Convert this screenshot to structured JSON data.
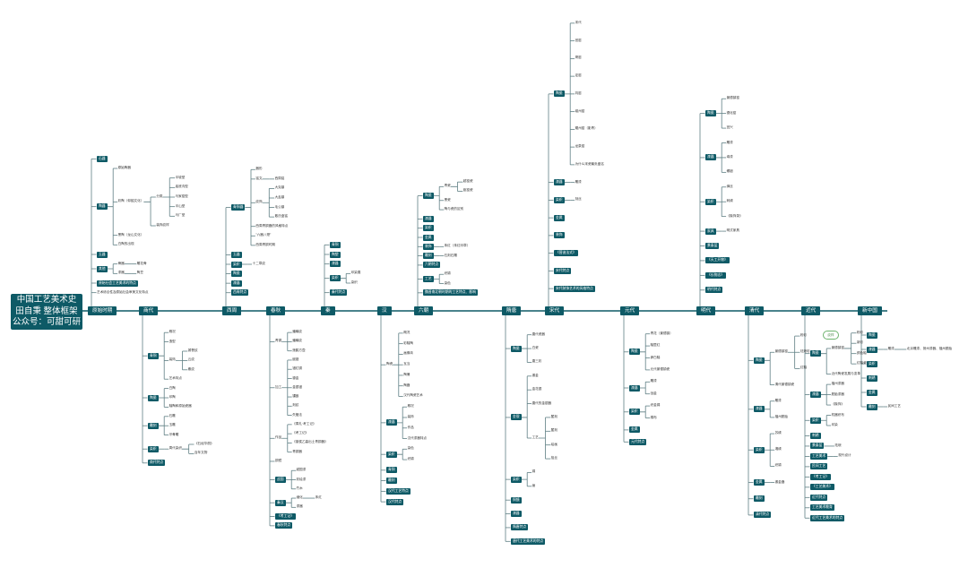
{
  "root": {
    "lines": [
      "中国工艺美术史",
      "田自秉 整体框架",
      "公众号：可甜可研"
    ]
  },
  "eras": [
    {
      "id": "prehist",
      "label": "原始时期"
    },
    {
      "id": "shang",
      "label": "商代"
    },
    {
      "id": "xizhou",
      "label": "西周"
    },
    {
      "id": "chunqiu",
      "label": "春秋"
    },
    {
      "id": "qin",
      "label": "秦"
    },
    {
      "id": "han",
      "label": "汉"
    },
    {
      "id": "liuchao",
      "label": "六朝"
    },
    {
      "id": "suitang",
      "label": "隋唐"
    },
    {
      "id": "songdai",
      "label": "宋代"
    },
    {
      "id": "yuandai",
      "label": "元代"
    },
    {
      "id": "mingdai",
      "label": "明代"
    },
    {
      "id": "qingdai",
      "label": "清代"
    },
    {
      "id": "jindai",
      "label": "近代"
    },
    {
      "id": "xinzg",
      "label": "新中国"
    }
  ],
  "nodes": [
    {
      "id": "n1",
      "p": "prehist",
      "t": "石器",
      "s": "sec"
    },
    {
      "id": "n2",
      "p": "prehist",
      "t": "陶器",
      "s": "sec"
    },
    {
      "id": "n3",
      "p": "n2",
      "t": "原始陶器"
    },
    {
      "id": "n4",
      "p": "n2",
      "t": "彩陶（仰韶文化）"
    },
    {
      "id": "n5",
      "p": "n4",
      "t": "分类"
    },
    {
      "id": "n6",
      "p": "n5",
      "t": "半坡型"
    },
    {
      "id": "n7",
      "p": "n5",
      "t": "庙底沟型"
    },
    {
      "id": "n8",
      "p": "n5",
      "t": "马家窑型"
    },
    {
      "id": "n9",
      "p": "n5",
      "t": "半山型"
    },
    {
      "id": "n10",
      "p": "n5",
      "t": "马厂型"
    },
    {
      "id": "n11",
      "p": "n4",
      "t": "装饰纹样"
    },
    {
      "id": "n12",
      "p": "n2",
      "t": "黑陶（龙山文化）"
    },
    {
      "id": "n13",
      "p": "n2",
      "t": "白陶的出现"
    },
    {
      "id": "n14",
      "p": "prehist",
      "t": "玉器",
      "s": "sec"
    },
    {
      "id": "n15",
      "p": "prehist",
      "t": "其他",
      "s": "sec"
    },
    {
      "id": "n16",
      "p": "n15",
      "t": "骨器"
    },
    {
      "id": "n17",
      "p": "n16",
      "t": "雕花骨"
    },
    {
      "id": "n18",
      "p": "n15",
      "t": "漆器"
    },
    {
      "id": "n19",
      "p": "n18",
      "t": "陶豆"
    },
    {
      "id": "n20",
      "p": "prehist",
      "t": "原始社会工艺美术的特点",
      "s": "sec"
    },
    {
      "id": "n21",
      "p": "prehist",
      "t": "艺术综合性及原始社会审美文化特点"
    },
    {
      "id": "s1",
      "p": "shang",
      "t": "青铜",
      "s": "sec"
    },
    {
      "id": "s2",
      "p": "s1",
      "t": "概况"
    },
    {
      "id": "s3",
      "p": "s1",
      "t": "造型"
    },
    {
      "id": "s4",
      "p": "s1",
      "t": "装饰"
    },
    {
      "id": "s5",
      "p": "s4",
      "t": "饕餮纹"
    },
    {
      "id": "s6",
      "p": "s4",
      "t": "云纹"
    },
    {
      "id": "s7",
      "p": "s4",
      "t": "夔纹"
    },
    {
      "id": "s8",
      "p": "s1",
      "t": "艺术特点"
    },
    {
      "id": "s9",
      "p": "shang",
      "t": "陶瓷",
      "s": "sec"
    },
    {
      "id": "s10",
      "p": "s9",
      "t": "白陶"
    },
    {
      "id": "s11",
      "p": "s9",
      "t": "印陶"
    },
    {
      "id": "s12",
      "p": "s9",
      "t": "釉陶和原始瓷器"
    },
    {
      "id": "s13",
      "p": "shang",
      "t": "雕刻",
      "s": "sec"
    },
    {
      "id": "s14",
      "p": "s13",
      "t": "石雕"
    },
    {
      "id": "s15",
      "p": "s13",
      "t": "玉雕"
    },
    {
      "id": "s16",
      "p": "s13",
      "t": "牙骨雕"
    },
    {
      "id": "s17",
      "p": "shang",
      "t": "染织",
      "s": "sec"
    },
    {
      "id": "s18",
      "p": "s17",
      "t": "周代染织"
    },
    {
      "id": "s19",
      "p": "s18",
      "t": "《石经华丽》"
    },
    {
      "id": "s20",
      "p": "s18",
      "t": "百年文物"
    },
    {
      "id": "s21",
      "p": "shang",
      "t": "商代特点",
      "s": "sec"
    },
    {
      "id": "x1",
      "p": "xizhou",
      "t": "青铜器",
      "s": "sec"
    },
    {
      "id": "x2",
      "p": "x1",
      "t": "器形"
    },
    {
      "id": "x3",
      "p": "x1",
      "t": "铭文"
    },
    {
      "id": "x4",
      "p": "x3",
      "t": "西周铭"
    },
    {
      "id": "x5",
      "p": "x1",
      "t": "纹饰"
    },
    {
      "id": "x6",
      "p": "x5",
      "t": "大克鼎"
    },
    {
      "id": "x7",
      "p": "x5",
      "t": "大盂鼎"
    },
    {
      "id": "x8",
      "p": "x5",
      "t": "毛公鼎"
    },
    {
      "id": "x9",
      "p": "x5",
      "t": "散氏盘铭"
    },
    {
      "id": "x10",
      "p": "x1",
      "t": "西周青铜器的风格特点"
    },
    {
      "id": "x11",
      "p": "x1",
      "t": "\"六器八瓒\""
    },
    {
      "id": "x12",
      "p": "x1",
      "t": "西周青铜时期"
    },
    {
      "id": "x13",
      "p": "xizhou",
      "t": "玉器",
      "s": "sec"
    },
    {
      "id": "x14",
      "p": "xizhou",
      "t": "染织",
      "s": "sec"
    },
    {
      "id": "x15",
      "p": "x14",
      "t": "十二章纹"
    },
    {
      "id": "x16",
      "p": "xizhou",
      "t": "陶瓷",
      "s": "sec"
    },
    {
      "id": "x17",
      "p": "xizhou",
      "t": "漆器",
      "s": "sec"
    },
    {
      "id": "x18",
      "p": "xizhou",
      "t": "西周特点",
      "s": "sec"
    },
    {
      "id": "c1",
      "p": "chunqiu",
      "t": "青铜"
    },
    {
      "id": "c2",
      "p": "c1",
      "t": "蟠螭纹"
    },
    {
      "id": "c3",
      "p": "c1",
      "t": "蟠螭纹"
    },
    {
      "id": "c4",
      "p": "c1",
      "t": "莲鹤方壶"
    },
    {
      "id": "c5",
      "p": "chunqiu",
      "t": "加工"
    },
    {
      "id": "c6",
      "p": "c5",
      "t": "嵌错"
    },
    {
      "id": "c7",
      "p": "c5",
      "t": "错红铜"
    },
    {
      "id": "c8",
      "p": "c5",
      "t": "鎏金"
    },
    {
      "id": "c9",
      "p": "c5",
      "t": "金银错"
    },
    {
      "id": "c10",
      "p": "c5",
      "t": "镶嵌"
    },
    {
      "id": "c11",
      "p": "c5",
      "t": "刻纹"
    },
    {
      "id": "c12",
      "p": "c5",
      "t": "失蜡法"
    },
    {
      "id": "c13",
      "p": "chunqiu",
      "t": "作品"
    },
    {
      "id": "c14",
      "p": "c13",
      "t": "《周礼·考工记》"
    },
    {
      "id": "c15",
      "p": "c13",
      "t": "《考工记》"
    },
    {
      "id": "c16",
      "p": "c13",
      "t": "《曾侯乙墓出土青铜器》"
    },
    {
      "id": "c17",
      "p": "c13",
      "t": "青铜器"
    },
    {
      "id": "c18",
      "p": "chunqiu",
      "t": "铜镜"
    },
    {
      "id": "c19",
      "p": "chunqiu",
      "t": "战国",
      "s": "sec"
    },
    {
      "id": "c20",
      "p": "c19",
      "t": "越国漆"
    },
    {
      "id": "c21",
      "p": "c19",
      "t": "彩绘漆"
    },
    {
      "id": "c22",
      "p": "c19",
      "t": "竹木"
    },
    {
      "id": "c23",
      "p": "chunqiu",
      "t": "秦汉",
      "s": "sec"
    },
    {
      "id": "c24",
      "p": "c23",
      "t": "缀化"
    },
    {
      "id": "c25",
      "p": "c24",
      "t": "朱红"
    },
    {
      "id": "c26",
      "p": "c23",
      "t": "漆器"
    },
    {
      "id": "c27",
      "p": "chunqiu",
      "t": "《考工记》",
      "s": "sec"
    },
    {
      "id": "c28",
      "p": "chunqiu",
      "t": "春秋特点",
      "s": "sec"
    },
    {
      "id": "q1",
      "p": "qin",
      "t": "青铜",
      "s": "sec"
    },
    {
      "id": "q2",
      "p": "qin",
      "t": "陶塑",
      "s": "sec"
    },
    {
      "id": "q3",
      "p": "qin",
      "t": "漆器",
      "s": "sec"
    },
    {
      "id": "q4",
      "p": "qin",
      "t": "染织",
      "s": "sec"
    },
    {
      "id": "q5",
      "p": "q4",
      "t": "印染展"
    },
    {
      "id": "q6",
      "p": "q4",
      "t": "染织"
    },
    {
      "id": "q7",
      "p": "qin",
      "t": "秦代特点",
      "s": "sec"
    },
    {
      "id": "h1",
      "p": "han",
      "t": "陶瓷"
    },
    {
      "id": "h2",
      "p": "h1",
      "t": "概况"
    },
    {
      "id": "h3",
      "p": "h1",
      "t": "彩釉陶"
    },
    {
      "id": "h4",
      "p": "h1",
      "t": "画像砖"
    },
    {
      "id": "h5",
      "p": "h1",
      "t": "瓦当"
    },
    {
      "id": "h6",
      "p": "h1",
      "t": "陶俑"
    },
    {
      "id": "h7",
      "p": "h1",
      "t": "陶器"
    },
    {
      "id": "h8",
      "p": "h1",
      "t": "汉代陶瓷艺术"
    },
    {
      "id": "h9",
      "p": "han",
      "t": "漆器",
      "s": "sec"
    },
    {
      "id": "h10",
      "p": "h9",
      "t": "概况"
    },
    {
      "id": "h11",
      "p": "h9",
      "t": "装饰"
    },
    {
      "id": "h12",
      "p": "h9",
      "t": "作品"
    },
    {
      "id": "h13",
      "p": "h9",
      "t": "汉代漆器特点"
    },
    {
      "id": "h14",
      "p": "han",
      "t": "染织",
      "s": "sec"
    },
    {
      "id": "h15",
      "p": "h14",
      "t": "染色"
    },
    {
      "id": "h16",
      "p": "h14",
      "t": "织锦"
    },
    {
      "id": "h17",
      "p": "han",
      "t": "青铜",
      "s": "sec"
    },
    {
      "id": "h18",
      "p": "han",
      "t": "雕刻",
      "s": "sec"
    },
    {
      "id": "h19",
      "p": "han",
      "t": "汉代工艺特点",
      "s": "sec"
    },
    {
      "id": "h20",
      "p": "han",
      "t": "汉代特点",
      "s": "sec"
    },
    {
      "id": "l1",
      "p": "liuchao",
      "t": "陶瓷",
      "s": "sec"
    },
    {
      "id": "l2",
      "p": "l1",
      "t": "青瓷"
    },
    {
      "id": "l3",
      "p": "l2",
      "t": "越窑瓷"
    },
    {
      "id": "l4",
      "p": "l2",
      "t": "瓯窑瓷"
    },
    {
      "id": "l5",
      "p": "l1",
      "t": "黑瓷"
    },
    {
      "id": "l6",
      "p": "l1",
      "t": "陶与瓷的区别"
    },
    {
      "id": "l7",
      "p": "liuchao",
      "t": "漆器",
      "s": "sec"
    },
    {
      "id": "l8",
      "p": "liuchao",
      "t": "染织",
      "s": "sec"
    },
    {
      "id": "l9",
      "p": "liuchao",
      "t": "金属",
      "s": "sec"
    },
    {
      "id": "l10",
      "p": "liuchao",
      "t": "装饰",
      "s": "sec"
    },
    {
      "id": "l11",
      "p": "l10",
      "t": "朱红（朱红印章）"
    },
    {
      "id": "l12",
      "p": "liuchao",
      "t": "雕刻",
      "s": "sec"
    },
    {
      "id": "l13",
      "p": "l12",
      "t": "石刻石雕"
    },
    {
      "id": "l14",
      "p": "liuchao",
      "t": "六朝特点",
      "s": "sec"
    },
    {
      "id": "l15",
      "p": "liuchao",
      "t": "工艺",
      "s": "sec"
    },
    {
      "id": "l16",
      "p": "l15",
      "t": "织锦"
    },
    {
      "id": "l17",
      "p": "l15",
      "t": "染色"
    },
    {
      "id": "l18",
      "p": "liuchao",
      "t": "魏晋南北朝时期的工艺特点、影响",
      "s": "sec"
    },
    {
      "id": "t1",
      "p": "suitang",
      "t": "陶瓷",
      "s": "sec"
    },
    {
      "id": "t2",
      "p": "t1",
      "t": "唐代瓷器"
    },
    {
      "id": "t3",
      "p": "t1",
      "t": "白瓷"
    },
    {
      "id": "t4",
      "p": "t1",
      "t": "唐三彩"
    },
    {
      "id": "t5",
      "p": "suitang",
      "t": "金银",
      "s": "sec"
    },
    {
      "id": "t6",
      "p": "t5",
      "t": "鎏金"
    },
    {
      "id": "t7",
      "p": "t5",
      "t": "金花银"
    },
    {
      "id": "t8",
      "p": "t5",
      "t": "唐代的金银器"
    },
    {
      "id": "t9",
      "p": "t5",
      "t": "工艺"
    },
    {
      "id": "t10",
      "p": "t9",
      "t": "錾刻"
    },
    {
      "id": "t11",
      "p": "t9",
      "t": "錾刻"
    },
    {
      "id": "t12",
      "p": "t9",
      "t": "绘画"
    },
    {
      "id": "t13",
      "p": "t9",
      "t": "掐丝"
    },
    {
      "id": "t14",
      "p": "suitang",
      "t": "染织",
      "s": "sec"
    },
    {
      "id": "t15",
      "p": "t14",
      "t": "锦"
    },
    {
      "id": "t16",
      "p": "t14",
      "t": "绫"
    },
    {
      "id": "t17",
      "p": "suitang",
      "t": "铜镜",
      "s": "sec"
    },
    {
      "id": "t18",
      "p": "suitang",
      "t": "漆器",
      "s": "sec"
    },
    {
      "id": "t19",
      "p": "suitang",
      "t": "隋唐特点",
      "s": "sec"
    },
    {
      "id": "t20",
      "p": "suitang",
      "t": "唐代工艺美术的特点",
      "s": "sec"
    },
    {
      "id": "sd1",
      "p": "songdai",
      "t": "陶瓷",
      "s": "sec"
    },
    {
      "id": "sd2",
      "p": "sd1",
      "t": "宋代"
    },
    {
      "id": "sd3",
      "p": "sd1",
      "t": "官窑"
    },
    {
      "id": "sd4",
      "p": "sd1",
      "t": "哥窑"
    },
    {
      "id": "sd5",
      "p": "sd1",
      "t": "定窑"
    },
    {
      "id": "sd6",
      "p": "sd1",
      "t": "钧窑"
    },
    {
      "id": "sd7",
      "p": "sd1",
      "t": "磁州窑"
    },
    {
      "id": "sd8",
      "p": "sd1",
      "t": "耀州窑（影青）"
    },
    {
      "id": "sd9",
      "p": "sd1",
      "t": "龙泉窑"
    },
    {
      "id": "sd10",
      "p": "sd1",
      "t": "为什么宋瓷最负盛名"
    },
    {
      "id": "sd11",
      "p": "songdai",
      "t": "漆器",
      "s": "sec"
    },
    {
      "id": "sd12",
      "p": "sd11",
      "t": "雕漆"
    },
    {
      "id": "sd13",
      "p": "songdai",
      "t": "染织",
      "s": "sec"
    },
    {
      "id": "sd14",
      "p": "sd13",
      "t": "刻丝"
    },
    {
      "id": "sd15",
      "p": "songdai",
      "t": "金属",
      "s": "sec"
    },
    {
      "id": "sd16",
      "p": "songdai",
      "t": "装饰",
      "s": "sec"
    },
    {
      "id": "sd17",
      "p": "songdai",
      "t": "《营造法式》",
      "s": "sec"
    },
    {
      "id": "sd18",
      "p": "songdai",
      "t": "宋代特点",
      "s": "sec"
    },
    {
      "id": "sd19",
      "p": "songdai",
      "t": "宋代装饰艺术的风格特点",
      "s": "sec"
    },
    {
      "id": "y1",
      "p": "yuandai",
      "t": "陶瓷",
      "s": "sec"
    },
    {
      "id": "y2",
      "p": "y1",
      "t": "青花（景德镇）"
    },
    {
      "id": "y3",
      "p": "y1",
      "t": "釉里红"
    },
    {
      "id": "y4",
      "p": "y1",
      "t": "卵白釉"
    },
    {
      "id": "y5",
      "p": "y1",
      "t": "元代景德镇瓷"
    },
    {
      "id": "y6",
      "p": "yuandai",
      "t": "漆器",
      "s": "sec"
    },
    {
      "id": "y7",
      "p": "y6",
      "t": "雕漆"
    },
    {
      "id": "y8",
      "p": "y6",
      "t": "戗金"
    },
    {
      "id": "y9",
      "p": "yuandai",
      "t": "染织",
      "s": "sec"
    },
    {
      "id": "y10",
      "p": "y9",
      "t": "织金锦"
    },
    {
      "id": "y11",
      "p": "y9",
      "t": "棉布"
    },
    {
      "id": "y12",
      "p": "yuandai",
      "t": "金属",
      "s": "sec"
    },
    {
      "id": "y13",
      "p": "yuandai",
      "t": "元代特点",
      "s": "sec"
    },
    {
      "id": "m1",
      "p": "mingdai",
      "t": "陶瓷",
      "s": "sec"
    },
    {
      "id": "m2",
      "p": "m1",
      "t": "景德镇窑"
    },
    {
      "id": "m3",
      "p": "m1",
      "t": "德化窑"
    },
    {
      "id": "m4",
      "p": "m1",
      "t": "宜兴"
    },
    {
      "id": "m5",
      "p": "mingdai",
      "t": "漆器",
      "s": "sec"
    },
    {
      "id": "m6",
      "p": "m5",
      "t": "雕漆"
    },
    {
      "id": "m7",
      "p": "m5",
      "t": "填漆"
    },
    {
      "id": "m8",
      "p": "m5",
      "t": "螺钿"
    },
    {
      "id": "m9",
      "p": "mingdai",
      "t": "染织",
      "s": "sec"
    },
    {
      "id": "m10",
      "p": "m9",
      "t": "缂丝"
    },
    {
      "id": "m11",
      "p": "m9",
      "t": "刺绣"
    },
    {
      "id": "m12",
      "p": "m9",
      "t": "《髹饰录》"
    },
    {
      "id": "m13",
      "p": "mingdai",
      "t": "家具",
      "s": "sec"
    },
    {
      "id": "m14",
      "p": "m13",
      "t": "明式家具"
    },
    {
      "id": "m15",
      "p": "mingdai",
      "t": "景泰蓝",
      "s": "sec"
    },
    {
      "id": "m16",
      "p": "mingdai",
      "t": "《天工开物》",
      "s": "sec"
    },
    {
      "id": "m17",
      "p": "mingdai",
      "t": "《长物志》",
      "s": "sec"
    },
    {
      "id": "m18",
      "p": "mingdai",
      "t": "明代特点",
      "s": "sec"
    },
    {
      "id": "q_1",
      "p": "qingdai",
      "t": "陶瓷",
      "s": "sec"
    },
    {
      "id": "q_2",
      "p": "q_1",
      "t": "景德镇窑"
    },
    {
      "id": "q_3",
      "p": "q_2",
      "t": "粉彩"
    },
    {
      "id": "q_4",
      "p": "q_2",
      "t": "珐琅彩"
    },
    {
      "id": "q_5",
      "p": "q_2",
      "t": "红釉"
    },
    {
      "id": "q_6",
      "p": "q_1",
      "t": "清代景德镇瓷"
    },
    {
      "id": "q_7",
      "p": "qingdai",
      "t": "漆器",
      "s": "sec"
    },
    {
      "id": "q_8",
      "p": "q_7",
      "t": "雕漆"
    },
    {
      "id": "q_9",
      "p": "q_7",
      "t": "福州脱胎"
    },
    {
      "id": "q_10",
      "p": "qingdai",
      "t": "染织",
      "s": "sec"
    },
    {
      "id": "q_11",
      "p": "q_10",
      "t": "苏绣"
    },
    {
      "id": "q_12",
      "p": "q_10",
      "t": "湘绣"
    },
    {
      "id": "q_13",
      "p": "q_10",
      "t": "织锦"
    },
    {
      "id": "q_14",
      "p": "qingdai",
      "t": "金属",
      "s": "sec"
    },
    {
      "id": "q_15",
      "p": "q_14",
      "t": "鎏金器"
    },
    {
      "id": "q_16",
      "p": "qingdai",
      "t": "雕刻",
      "s": "sec"
    },
    {
      "id": "q_17",
      "p": "qingdai",
      "t": "清代特点",
      "s": "sec"
    },
    {
      "id": "j1",
      "p": "jindai",
      "t": "陶瓷",
      "s": "sec"
    },
    {
      "id": "j2",
      "p": "j1",
      "t": "景德镇窑"
    },
    {
      "id": "j3",
      "p": "j2",
      "t": "粉彩"
    },
    {
      "id": "j4",
      "p": "j2",
      "t": "新彩"
    },
    {
      "id": "j5",
      "p": "j2",
      "t": "颜色釉"
    },
    {
      "id": "j6",
      "p": "j2",
      "t": "红釉瓷"
    },
    {
      "id": "j7",
      "p": "j1",
      "t": "近代陶瓷发展与变革"
    },
    {
      "id": "j8",
      "p": "jindai",
      "t": "漆器",
      "s": "sec"
    },
    {
      "id": "j9",
      "p": "j8",
      "t": "福州漆器"
    },
    {
      "id": "j10",
      "p": "j8",
      "t": "脱胎漆器"
    },
    {
      "id": "j11",
      "p": "j8",
      "t": "《髹饰》"
    },
    {
      "id": "j12",
      "p": "jindai",
      "t": "染织",
      "s": "sec"
    },
    {
      "id": "j13",
      "p": "j12",
      "t": "机器织布"
    },
    {
      "id": "j14",
      "p": "j12",
      "t": "印染"
    },
    {
      "id": "j15",
      "p": "jindai",
      "t": "刺绣",
      "s": "sec"
    },
    {
      "id": "j16",
      "p": "jindai",
      "t": "景泰蓝",
      "s": "sec"
    },
    {
      "id": "j17",
      "p": "j16",
      "t": "珐琅"
    },
    {
      "id": "j18",
      "p": "jindai",
      "t": "工艺美术",
      "s": "sec"
    },
    {
      "id": "j19",
      "p": "j18",
      "t": "现代设计"
    },
    {
      "id": "j20",
      "p": "jindai",
      "t": "民间工艺",
      "s": "sec"
    },
    {
      "id": "j21",
      "p": "jindai",
      "t": "《考工记》",
      "s": "sec"
    },
    {
      "id": "j22",
      "p": "jindai",
      "t": "《工艺美术》",
      "s": "sec"
    },
    {
      "id": "j23",
      "p": "jindai",
      "t": "近代特点",
      "s": "sec"
    },
    {
      "id": "j24",
      "p": "jindai",
      "t": "工艺美术教育",
      "s": "sec"
    },
    {
      "id": "j25",
      "p": "jindai",
      "t": "近代工艺美术的特点",
      "s": "sec"
    },
    {
      "id": "z1",
      "p": "xinzg",
      "t": "陶瓷",
      "s": "sec"
    },
    {
      "id": "z2",
      "p": "xinzg",
      "t": "漆器",
      "s": "sec"
    },
    {
      "id": "z3",
      "p": "z2",
      "t": "雕漆"
    },
    {
      "id": "z4",
      "p": "z3",
      "t": "北京雕漆、扬州漆器、福州脱胎"
    },
    {
      "id": "z5",
      "p": "xinzg",
      "t": "染织",
      "s": "sec"
    },
    {
      "id": "z6",
      "p": "xinzg",
      "t": "刺绣",
      "s": "sec"
    },
    {
      "id": "z7",
      "p": "xinzg",
      "t": "金属",
      "s": "sec"
    },
    {
      "id": "z8",
      "p": "xinzg",
      "t": "雕刻",
      "s": "sec"
    },
    {
      "id": "z9",
      "p": "z8",
      "t": "民间工艺"
    }
  ],
  "floating_note": "纹样"
}
